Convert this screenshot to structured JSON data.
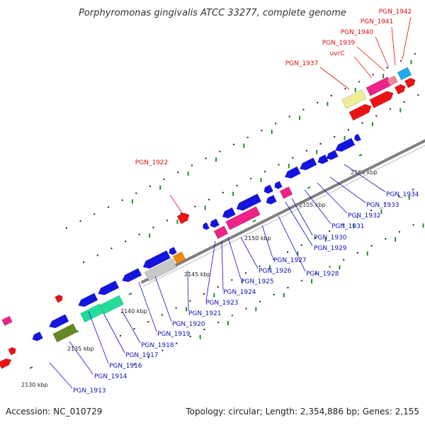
{
  "title": "Porphyromonas gingivalis ATCC 33277, complete genome",
  "footer": {
    "accession": "Accession: NC_010729",
    "summary": "Topology: circular; Length: 2,354,886 bp; Genes: 2,155"
  },
  "colors": {
    "backbone": "#808080",
    "dots": "#222222",
    "tick": "#2a8a2a",
    "label_forward": "#dd1111",
    "label_reverse": "#1111bb"
  },
  "ticks": [
    {
      "label": "2130 kbp"
    },
    {
      "label": "2135 kbp"
    },
    {
      "label": "2140 kbp"
    },
    {
      "label": "2145 kbp"
    },
    {
      "label": "2150 kbp"
    },
    {
      "label": "2155 kbp"
    },
    {
      "label": "2160 kbp"
    }
  ],
  "labels_forward": [
    "PGN_1922",
    "PGN_1937",
    "uvrC",
    "PGN_1939",
    "PGN_1940",
    "PGN_1941",
    "PGN_1942"
  ],
  "labels_reverse": [
    "PGN_1913",
    "PGN_1914",
    "PGN_1916",
    "PGN_1917",
    "PGN_1918",
    "PGN_1919",
    "PGN_1920",
    "PGN_1921",
    "PGN_1923",
    "PGN_1924",
    "PGN_1925",
    "PGN_1926",
    "PGN_1927",
    "PGN_1928",
    "PGN_1929",
    "PGN_1930",
    "PGN_1931",
    "PGN_1932",
    "PGN_1933",
    "PGN_1934"
  ]
}
